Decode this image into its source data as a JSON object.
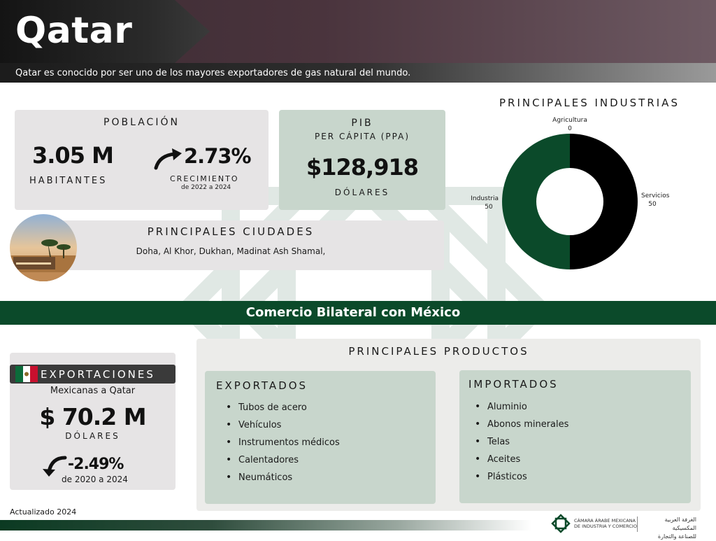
{
  "header": {
    "title": "Qatar",
    "subtitle": "Qatar es conocido por ser uno de los mayores exportadores de gas natural del mundo."
  },
  "poblacion": {
    "label": "POBLACIÓN",
    "value": "3.05 M",
    "unit": "HABITANTES",
    "growth": "2.73%",
    "growth_label": "CRECIMIENTO",
    "growth_period": "de 2022 a 2024"
  },
  "pib": {
    "label": "PIB",
    "sublabel": "PER CÁPITA (PPA)",
    "value": "$128,918",
    "unit": "DÓLARES"
  },
  "ciudades": {
    "label": "PRINCIPALES CIUDADES",
    "list": "Doha, Al Khor, Dukhan, Madinat Ash Shamal,"
  },
  "industrias": {
    "title": "PRINCIPALES INDUSTRIAS",
    "slice_labels": [
      {
        "name": "Agricultura",
        "value": "0"
      },
      {
        "name": "Servicios",
        "value": "50"
      },
      {
        "name": "Industria",
        "value": "50"
      }
    ]
  },
  "chart_data": {
    "type": "pie",
    "title": "PRINCIPALES INDUSTRIAS",
    "categories": [
      "Agricultura",
      "Servicios",
      "Industria"
    ],
    "values": [
      0,
      50,
      50
    ],
    "colors": [
      "#2e7d4f",
      "#000000",
      "#0b4a2a"
    ]
  },
  "comercio": {
    "band_title": "Comercio Bilateral con México"
  },
  "exportaciones": {
    "label": "EXPORTACIONES",
    "sublabel": "Mexicanas a Qatar",
    "value": "$ 70.2 M",
    "unit": "DÓLARES",
    "change": "-2.49%",
    "period": "de 2020 a 2024"
  },
  "productos": {
    "title": "PRINCIPALES PRODUCTOS",
    "exportados_label": "EXPORTADOS",
    "exportados": [
      "Tubos de acero",
      "Vehículos",
      "Instrumentos médicos",
      "Calentadores",
      "Neumáticos"
    ],
    "importados_label": "IMPORTADOS",
    "importados": [
      "Aluminio",
      "Abonos minerales",
      "Telas",
      "Aceites",
      "Plásticos"
    ]
  },
  "footer": {
    "updated": "Actualizado 2024",
    "org_name_line1": "CÁMARA ÁRABE MEXICANA",
    "org_name_line2": "DE INDUSTRIA Y COMERCIO",
    "org_arabic_line1": "الغرفة العربية المكسيكية",
    "org_arabic_line2": "للصناعة والتجارة"
  },
  "colors": {
    "brand_green": "#0b4a2a",
    "card_gray": "#e6e4e5",
    "card_green": "#c8d6cc",
    "header_maroon": "#4a343d"
  }
}
